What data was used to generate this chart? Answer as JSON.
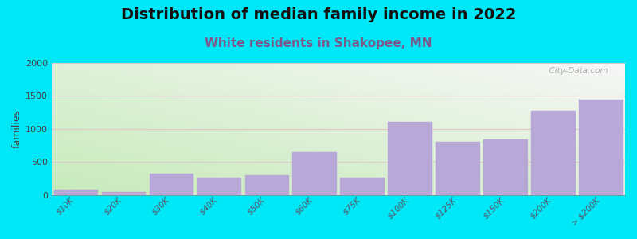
{
  "title": "Distribution of median family income in 2022",
  "subtitle": "White residents in Shakopee, MN",
  "ylabel": "families",
  "categories": [
    "$10K",
    "$20K",
    "$30K",
    "$40K",
    "$50K",
    "$60K",
    "$75K",
    "$100K",
    "$125K",
    "$150K",
    "$200K",
    "> $200K"
  ],
  "values": [
    75,
    40,
    320,
    265,
    295,
    650,
    255,
    1100,
    800,
    840,
    1270,
    1440
  ],
  "bar_color": "#b8a8d8",
  "bar_edge_color": "#b8a8d8",
  "bg_color_bottom_left": "#c8eabb",
  "bg_color_top_right": "#f0f0f0",
  "outer_bg": "#00e8f8",
  "title_fontsize": 14,
  "subtitle_fontsize": 11,
  "subtitle_color": "#7a5a8a",
  "ylabel_fontsize": 9,
  "tick_fontsize": 7.5,
  "ylim": [
    0,
    2000
  ],
  "yticks": [
    0,
    500,
    1000,
    1500,
    2000
  ],
  "grid_color": "#e0c8c8",
  "watermark": "  City-Data.com",
  "watermark_color": "#aaaaaa"
}
